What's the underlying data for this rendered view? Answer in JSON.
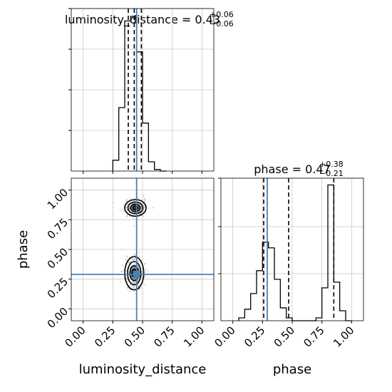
{
  "chart_data": {
    "type": "corner",
    "colors": {
      "truth": "#4682b4",
      "hist": "#000000",
      "grid": "#c8c8c8",
      "scatter": "#8c8c8c"
    },
    "ticks": {
      "labels": [
        "0.00",
        "0.25",
        "0.50",
        "0.75",
        "1.00"
      ]
    },
    "parameters": [
      {
        "name": "luminosity_distance",
        "axis_label": "luminosity_distance",
        "title_prefix": "luminosity_distance = 0.43",
        "title_plus": "+0.06",
        "title_minus": "−0.06",
        "range": [
          -0.1,
          1.1
        ],
        "truth": 0.45,
        "quantiles": [
          0.38,
          0.43,
          0.49
        ],
        "hist_edges": [
          0.25,
          0.3,
          0.35,
          0.4,
          0.45,
          0.5,
          0.55,
          0.6,
          0.65,
          0.7
        ],
        "hist_counts": [
          0.07,
          0.41,
          0.97,
          1.0,
          0.77,
          0.31,
          0.06,
          0.01,
          0.0
        ]
      },
      {
        "name": "phase",
        "axis_label": "phase",
        "title_prefix": "phase = 0.47",
        "title_plus": "+0.38",
        "title_minus": "−0.21",
        "range": [
          -0.1,
          1.1
        ],
        "truth": 0.29,
        "quantiles": [
          0.26,
          0.47,
          0.85
        ],
        "hist_edges": [
          0.05,
          0.1,
          0.15,
          0.2,
          0.25,
          0.3,
          0.35,
          0.4,
          0.45,
          0.5,
          0.55,
          0.6,
          0.65,
          0.7,
          0.75,
          0.8,
          0.85,
          0.9,
          0.95,
          1.0
        ],
        "hist_counts": [
          0.02,
          0.08,
          0.19,
          0.35,
          0.55,
          0.51,
          0.29,
          0.09,
          0.02,
          0.0,
          0.0,
          0.0,
          0.0,
          0.02,
          0.23,
          0.95,
          0.27,
          0.07,
          0.0
        ]
      }
    ],
    "blobs_2d": [
      {
        "x": 0.44,
        "y": 0.85,
        "sx": 0.045,
        "sy": 0.035
      },
      {
        "x": 0.43,
        "y": 0.3,
        "sx": 0.04,
        "sy": 0.07
      }
    ]
  }
}
